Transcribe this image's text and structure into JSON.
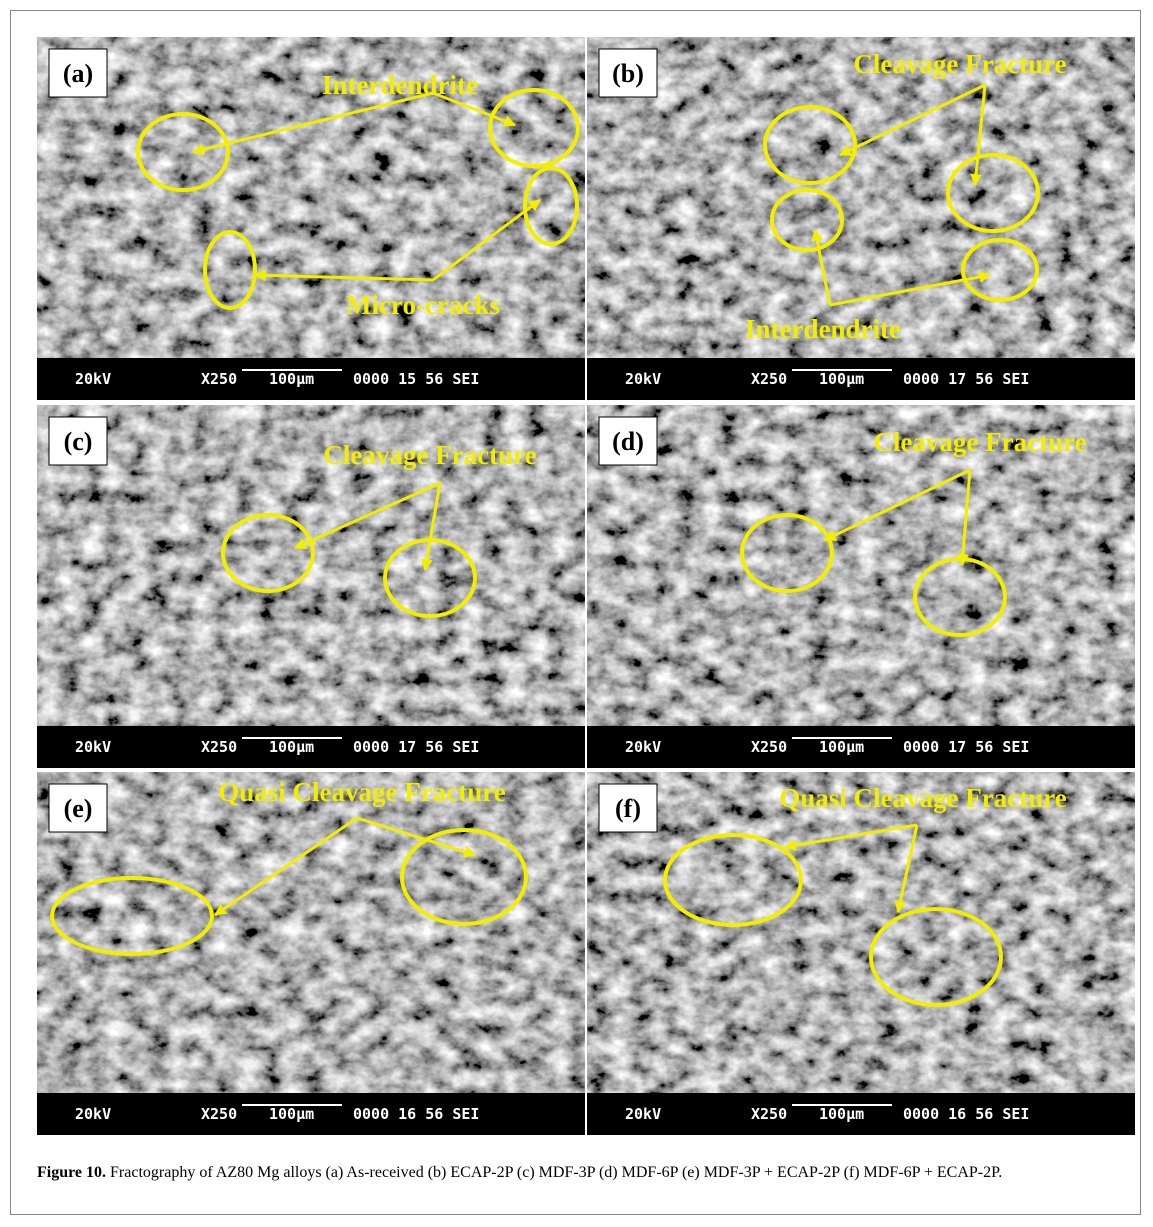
{
  "figure": {
    "panels": [
      {
        "label": "(a)",
        "annotations": [
          "Interdendrite",
          "Micro-cracks"
        ],
        "info_bar": {
          "voltage": "20kV",
          "magnification": "X250",
          "scale": "100µm",
          "code": "0000 15 56 SEI"
        }
      },
      {
        "label": "(b)",
        "annotations": [
          "Cleavage Fracture",
          "Interdendrite"
        ],
        "info_bar": {
          "voltage": "20kV",
          "magnification": "X250",
          "scale": "100µm",
          "code": "0000 17 56 SEI"
        }
      },
      {
        "label": "(c)",
        "annotations": [
          "Cleavage Fracture"
        ],
        "info_bar": {
          "voltage": "20kV",
          "magnification": "X250",
          "scale": "100µm",
          "code": "0000 17 56 SEI"
        }
      },
      {
        "label": "(d)",
        "annotations": [
          "Cleavage Fracture"
        ],
        "info_bar": {
          "voltage": "20kV",
          "magnification": "X250",
          "scale": "100µm",
          "code": "0000 17 56 SEI"
        }
      },
      {
        "label": "(e)",
        "annotations": [
          "Quasi Cleavage Fracture"
        ],
        "info_bar": {
          "voltage": "20kV",
          "magnification": "X250",
          "scale": "100µm",
          "code": "0000 16 56 SEI"
        }
      },
      {
        "label": "(f)",
        "annotations": [
          "Quasi Cleavage Fracture"
        ],
        "info_bar": {
          "voltage": "20kV",
          "magnification": "X250",
          "scale": "100µm",
          "code": "0000 16 56 SEI"
        }
      }
    ],
    "caption": {
      "label": "Figure 10.",
      "text": "Fractography of AZ80 Mg alloys (a) As-received (b) ECAP-2P (c) MDF-3P (d) MDF-6P (e) MDF-3P + ECAP-2P (f) MDF-6P + ECAP-2P."
    }
  }
}
